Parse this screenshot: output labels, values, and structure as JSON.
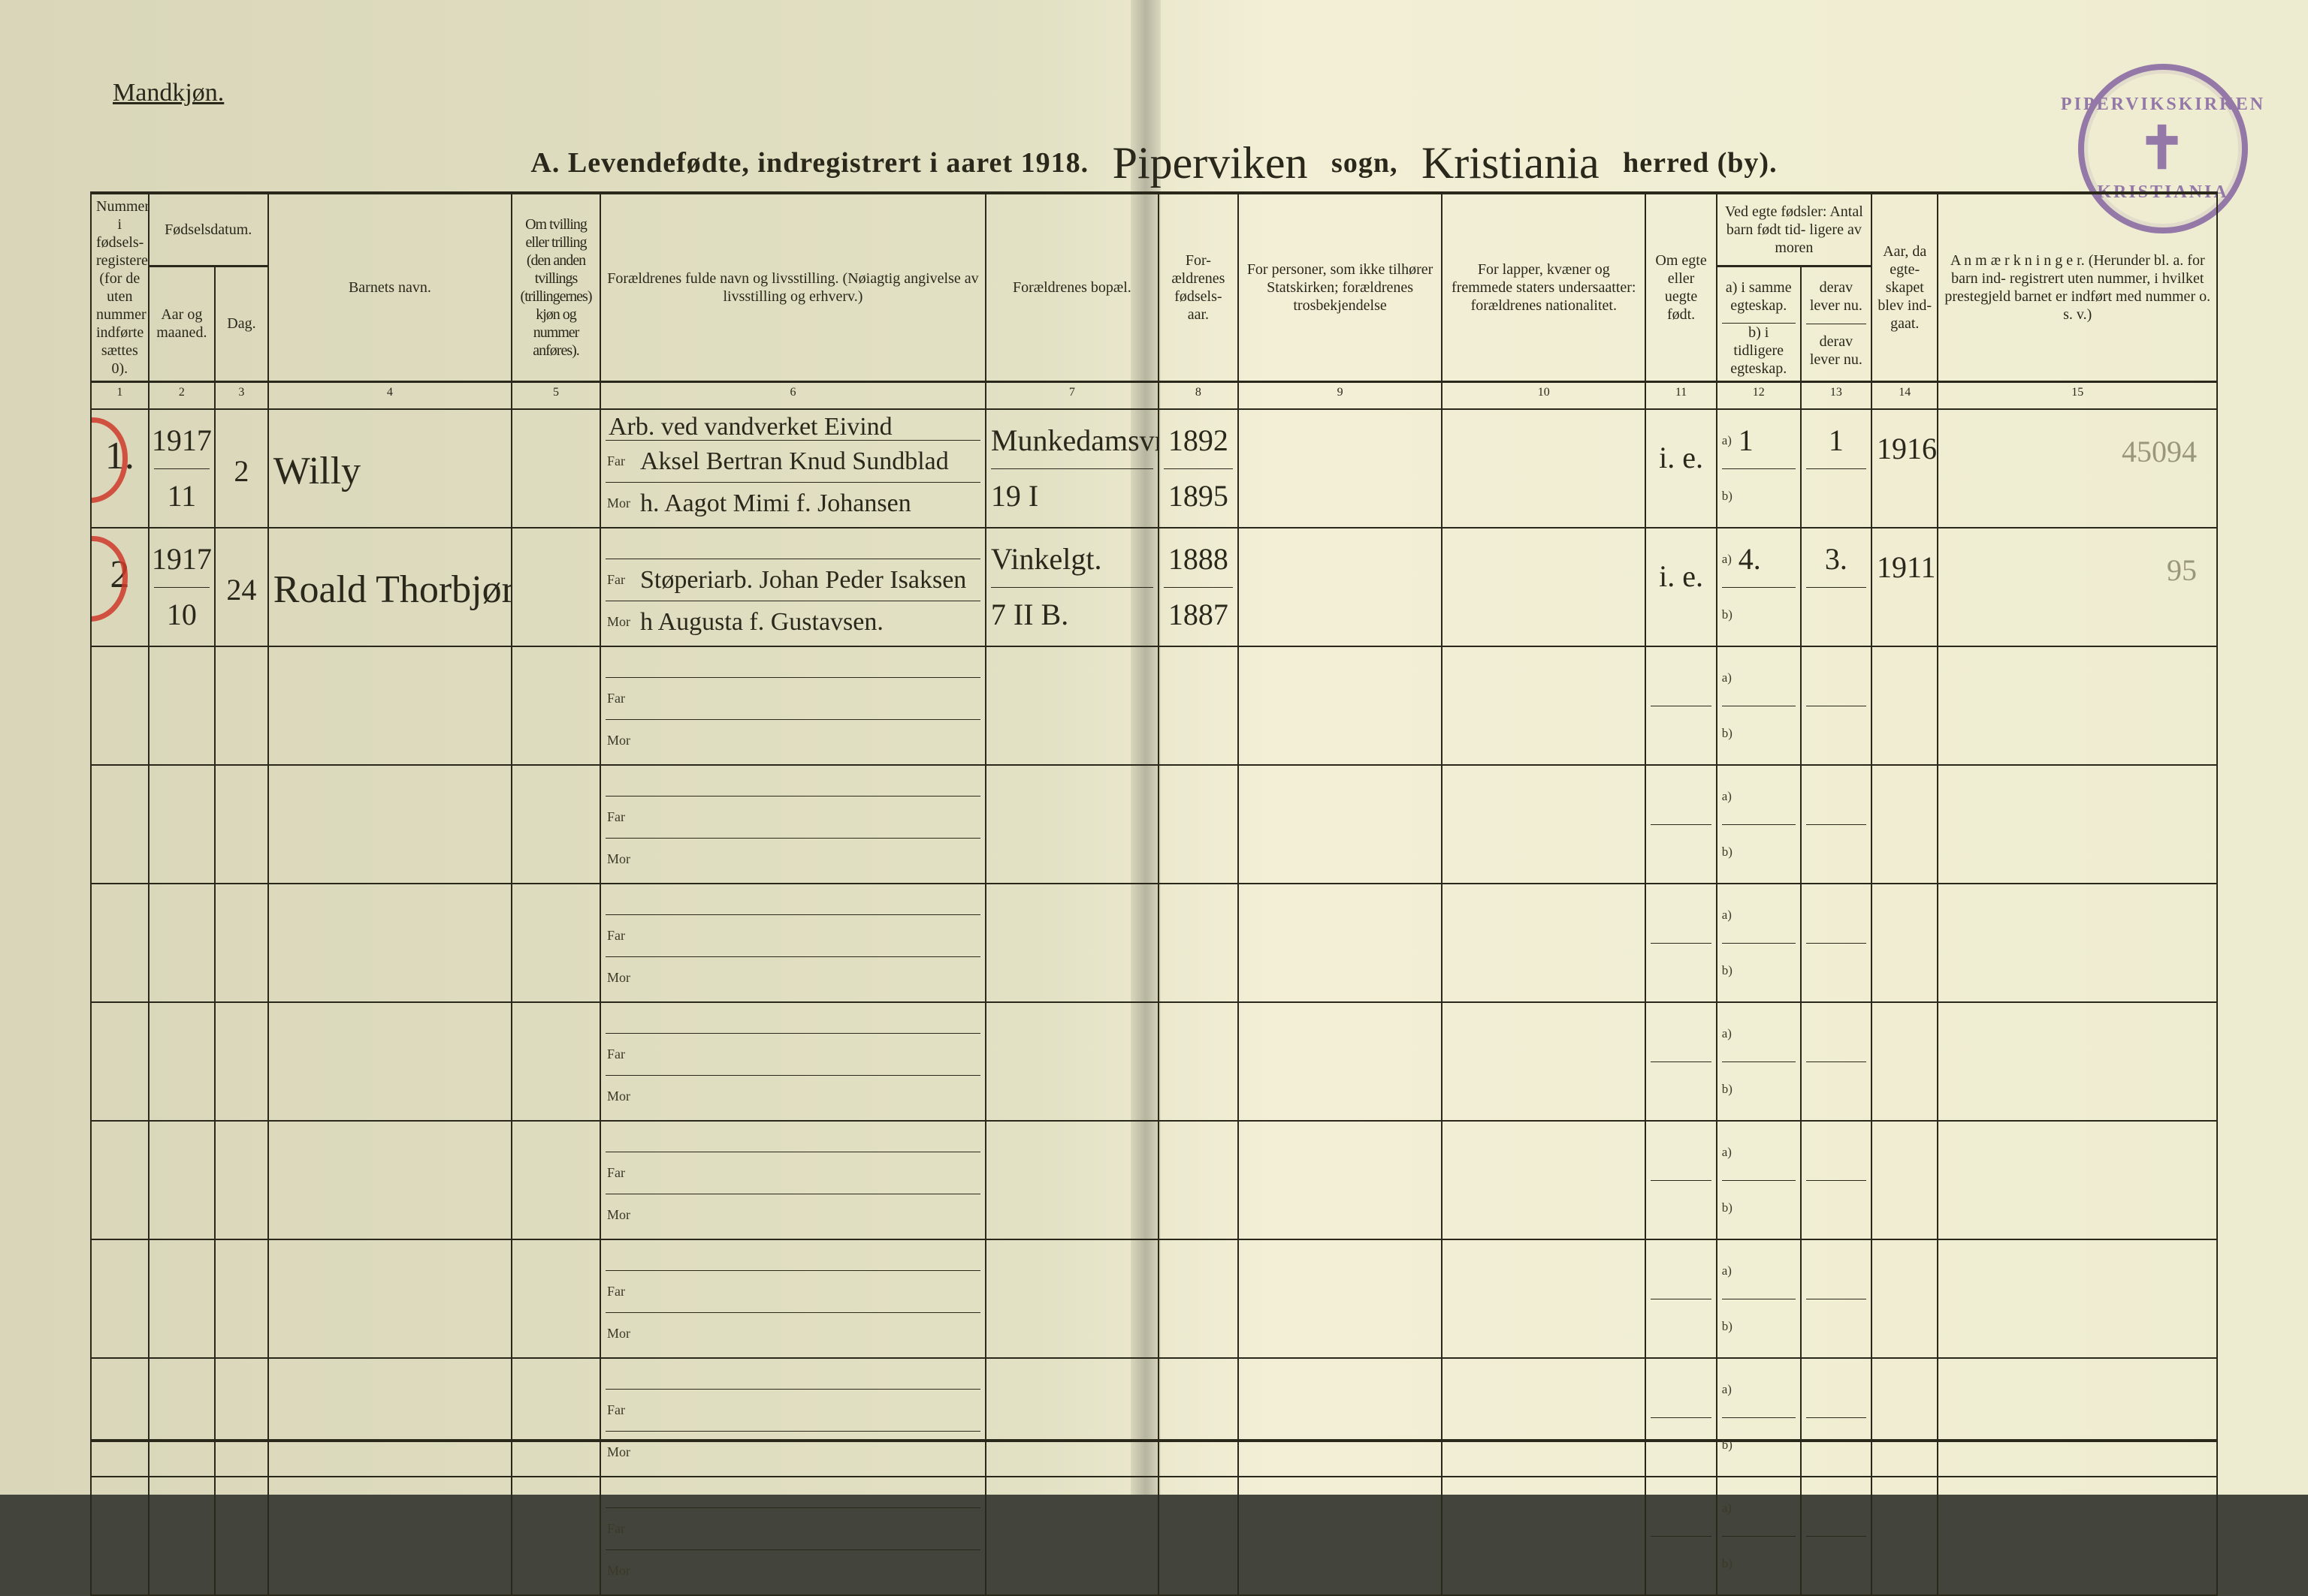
{
  "page": {
    "background_colors": [
      "#d9d6b9",
      "#e3e1c4",
      "#f2efd6",
      "#eeecd0"
    ],
    "ink_color": "#2a281b",
    "red_ink": "#cf3a2a",
    "stamp_color": "#7d5c9e"
  },
  "corner_label": "Mandkjøn.",
  "stamp": {
    "top": "PIPERVIKSKIRKEN",
    "bottom": "KRISTIANIA",
    "symbol": "✝"
  },
  "title": {
    "prefix": "A.  Levendefødte, indregistrert i aaret 191",
    "year_suffix": "8.",
    "sogn_script": "Piperviken",
    "sogn_label": "sogn,",
    "herred_script": "Kristiania",
    "herred_label": "herred (by)."
  },
  "headers": {
    "c1": "Nummer i fødsels- registeret (for de uten nummer indførte sættes 0).",
    "c_dato": "Fødselsdatum.",
    "c2": "Aar og maaned.",
    "c3": "Dag.",
    "c4": "Barnets navn.",
    "c5": "Om tvilling eller trilling (den anden tvillings (trillingernes) kjøn og nummer anføres).",
    "c6": "Forældrenes fulde navn og livsstilling. (Nøiagtig angivelse av livsstilling og erhverv.)",
    "c7": "Forældrenes bopæl.",
    "c8": "For- ældrenes fødsels- aar.",
    "c9": "For personer, som ikke tilhører Statskirken; forældrenes trosbekjendelse",
    "c10": "For lapper, kvæner og fremmede staters undersaatter: forældrenes nationalitet.",
    "c11": "Om egte eller uegte født.",
    "c12_top": "Ved egte fødsler: Antal barn født tid- ligere av moren",
    "c12a": "a) i samme egteskap.",
    "c12b": "b) i tidligere egteskap.",
    "c13a": "derav lever nu.",
    "c13b": "derav lever nu.",
    "c14": "Aar, da egte- skapet blev ind- gaat.",
    "c15": "A n m æ r k n i n g e r. (Herunder bl. a. for barn ind- registrert uten nummer, i hvilket prestegjeld barnet er indført med nummer o. s. v.)"
  },
  "colnums": [
    "1",
    "2",
    "3",
    "4",
    "5",
    "6",
    "7",
    "8",
    "9",
    "10",
    "11",
    "12",
    "13",
    "14",
    "15"
  ],
  "sublabels": {
    "far": "Far",
    "mor": "Mor",
    "a": "a)",
    "b": "b)"
  },
  "rows": [
    {
      "num": "1.",
      "year_month_top": "1917",
      "year_month_bot": "11",
      "day": "2",
      "name": "Willy",
      "twin": "",
      "profession": "Arb. ved vandverket Eivind",
      "far": "Aksel Bertran Knud Sundblad",
      "mor": "h. Aagot Mimi f. Johansen",
      "bopel_top": "Munkedamsvn.",
      "bopel_bot": "19 I",
      "faar_top": "1892",
      "faar_bot": "1895",
      "c9": "",
      "c10": "",
      "egte": "i. e.",
      "c12a": "1",
      "c12b": "",
      "c13a": "1",
      "c13b": "",
      "c14": "1916",
      "anm": "45094",
      "red_circle": true
    },
    {
      "num": "2",
      "year_month_top": "1917",
      "year_month_bot": "10",
      "day": "24",
      "name": "Roald Thorbjørn",
      "twin": "",
      "profession": "",
      "far": "Støperiarb. Johan Peder Isaksen",
      "mor": "h Augusta f. Gustavsen.",
      "bopel_top": "Vinkelgt.",
      "bopel_bot": "7 II B.",
      "faar_top": "1888",
      "faar_bot": "1887",
      "c9": "",
      "c10": "",
      "egte": "i. e.",
      "c12a": "4.",
      "c12b": "",
      "c13a": "3.",
      "c13b": "",
      "c14": "1911.",
      "anm": "95",
      "red_circle": true
    }
  ],
  "empty_rows": 8
}
